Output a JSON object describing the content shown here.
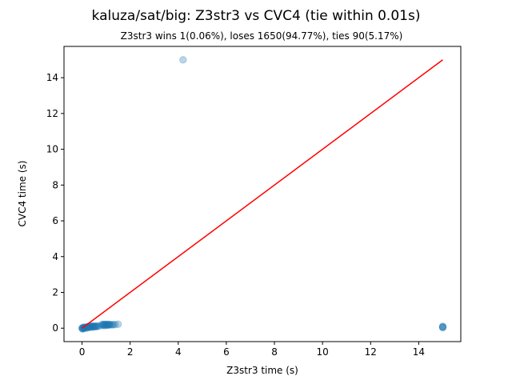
{
  "chart_data": {
    "type": "scatter",
    "title": "kaluza/sat/big: Z3str3 vs CVC4 (tie within 0.01s)",
    "subtitle": "Z3str3 wins 1(0.06%), loses 1650(94.77%), ties 90(5.17%)",
    "xlabel": "Z3str3 time (s)",
    "ylabel": "CVC4 time (s)",
    "xlim": [
      -0.75,
      15.75
    ],
    "ylim": [
      -0.75,
      15.75
    ],
    "xticks": [
      0,
      2,
      4,
      6,
      8,
      10,
      12,
      14
    ],
    "yticks": [
      0,
      2,
      4,
      6,
      8,
      10,
      12,
      14
    ],
    "grid": false,
    "point_color": "#1f77b4",
    "line_color": "#ff0000",
    "diagonal": {
      "x": [
        0,
        15
      ],
      "y": [
        0,
        15
      ]
    },
    "points": [
      {
        "x": 4.2,
        "y": 15.0
      },
      {
        "x": 15.0,
        "y": 0.05
      },
      {
        "x": 15.0,
        "y": 0.08
      },
      {
        "x": 15.0,
        "y": 0.1
      },
      {
        "x": 15.0,
        "y": 0.03
      },
      {
        "x": 0.0,
        "y": 0.0
      },
      {
        "x": 0.01,
        "y": -0.02
      },
      {
        "x": 0.02,
        "y": 0.02
      },
      {
        "x": 0.03,
        "y": -0.05
      },
      {
        "x": 0.05,
        "y": 0.05
      },
      {
        "x": 0.06,
        "y": -0.01
      },
      {
        "x": 0.08,
        "y": 0.03
      },
      {
        "x": 0.1,
        "y": 0.0
      },
      {
        "x": 0.12,
        "y": 0.06
      },
      {
        "x": 0.15,
        "y": 0.02
      },
      {
        "x": 0.18,
        "y": 0.05
      },
      {
        "x": 0.2,
        "y": 0.0
      },
      {
        "x": 0.22,
        "y": 0.08
      },
      {
        "x": 0.25,
        "y": 0.05
      },
      {
        "x": 0.28,
        "y": 0.1
      },
      {
        "x": 0.3,
        "y": 0.06
      },
      {
        "x": 0.33,
        "y": 0.1
      },
      {
        "x": 0.35,
        "y": 0.04
      },
      {
        "x": 0.38,
        "y": 0.12
      },
      {
        "x": 0.4,
        "y": 0.08
      },
      {
        "x": 0.42,
        "y": 0.1
      },
      {
        "x": 0.45,
        "y": 0.06
      },
      {
        "x": 0.48,
        "y": 0.12
      },
      {
        "x": 0.5,
        "y": 0.09
      },
      {
        "x": 0.52,
        "y": 0.11
      },
      {
        "x": 0.55,
        "y": 0.08
      },
      {
        "x": 0.58,
        "y": 0.1
      },
      {
        "x": 0.6,
        "y": 0.12
      },
      {
        "x": 0.65,
        "y": 0.1
      },
      {
        "x": 0.7,
        "y": 0.12
      },
      {
        "x": 0.82,
        "y": 0.2
      },
      {
        "x": 0.85,
        "y": 0.15
      },
      {
        "x": 0.88,
        "y": 0.22
      },
      {
        "x": 0.9,
        "y": 0.18
      },
      {
        "x": 0.93,
        "y": 0.2
      },
      {
        "x": 0.95,
        "y": 0.14
      },
      {
        "x": 0.98,
        "y": 0.22
      },
      {
        "x": 1.0,
        "y": 0.18
      },
      {
        "x": 1.03,
        "y": 0.2
      },
      {
        "x": 1.05,
        "y": 0.16
      },
      {
        "x": 1.08,
        "y": 0.22
      },
      {
        "x": 1.1,
        "y": 0.18
      },
      {
        "x": 1.13,
        "y": 0.2
      },
      {
        "x": 1.15,
        "y": 0.19
      },
      {
        "x": 1.2,
        "y": 0.2
      },
      {
        "x": 1.25,
        "y": 0.18
      },
      {
        "x": 1.3,
        "y": 0.2
      },
      {
        "x": 1.38,
        "y": 0.2
      },
      {
        "x": 1.5,
        "y": 0.22
      }
    ]
  }
}
